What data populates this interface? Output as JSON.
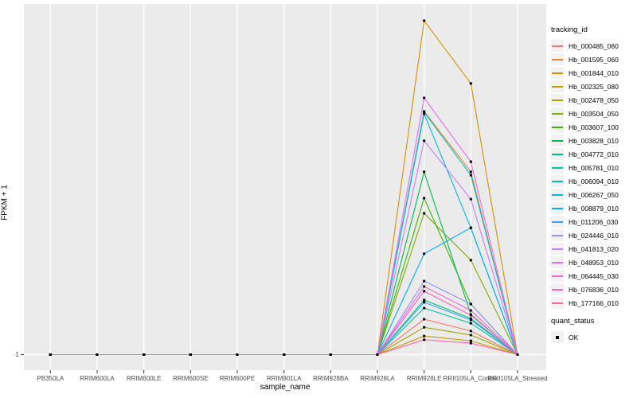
{
  "chart_data": {
    "type": "line",
    "title": "",
    "xlabel": "sample_name",
    "ylabel": "FPKM + 1",
    "y_ticks": [
      "1"
    ],
    "ylim_note": "only tick shown is 1 at baseline; values above are estimated FPKM + 1",
    "grid": "on",
    "panel_bg": "#EBEBEB",
    "grid_color": "#FFFFFF",
    "point_color": "#000000",
    "legend_position": "right",
    "legend_title": "tracking_id",
    "categories": [
      "PB350LA",
      "RRIM600LA",
      "RRIM600LE",
      "RRIM600SE",
      "RRIM600PE",
      "RRIM901LA",
      "RRIM928BA",
      "RRIM928LA",
      "RRIM928LE",
      "RRII105LA_Control",
      "RRII105LA_Stressed"
    ],
    "series": [
      {
        "name": "Hb_000485_060",
        "color": "#F8766D",
        "values": [
          1,
          1,
          1,
          1,
          1,
          1,
          1,
          1,
          11.5,
          8.0,
          1
        ]
      },
      {
        "name": "Hb_001595_060",
        "color": "#EA8331",
        "values": [
          1,
          1,
          1,
          1,
          1,
          1,
          1,
          1,
          73.1,
          55.2,
          1
        ]
      },
      {
        "name": "Hb_001844_010",
        "color": "#D89000",
        "values": [
          1,
          1,
          1,
          1,
          1,
          1,
          1,
          1,
          100.0,
          81.4,
          1
        ]
      },
      {
        "name": "Hb_002325_080",
        "color": "#C09B00",
        "values": [
          1,
          1,
          1,
          1,
          1,
          1,
          1,
          1,
          6.5,
          5.1,
          1
        ]
      },
      {
        "name": "Hb_002478_050",
        "color": "#A3A500",
        "values": [
          1,
          1,
          1,
          1,
          1,
          1,
          1,
          1,
          9.1,
          6.8,
          1
        ]
      },
      {
        "name": "Hb_003504_050",
        "color": "#7CAE00",
        "values": [
          1,
          1,
          1,
          1,
          1,
          1,
          1,
          1,
          42.9,
          29.0,
          1
        ]
      },
      {
        "name": "Hb_003607_100",
        "color": "#39B600",
        "values": [
          1,
          1,
          1,
          1,
          1,
          1,
          1,
          1,
          47.4,
          16.0,
          1
        ]
      },
      {
        "name": "Hb_003828_010",
        "color": "#00BB4E",
        "values": [
          1,
          1,
          1,
          1,
          1,
          1,
          1,
          1,
          55.2,
          12.9,
          1
        ]
      },
      {
        "name": "Hb_004772_010",
        "color": "#00BF7D",
        "values": [
          1,
          1,
          1,
          1,
          1,
          1,
          1,
          1,
          17.2,
          11.7,
          1
        ]
      },
      {
        "name": "Hb_005781_010",
        "color": "#00C1A3",
        "values": [
          1,
          1,
          1,
          1,
          1,
          1,
          1,
          1,
          14.8,
          10.3,
          1
        ]
      },
      {
        "name": "Hb_006094_010",
        "color": "#00BFC4",
        "values": [
          1,
          1,
          1,
          1,
          1,
          1,
          1,
          1,
          72.9,
          54.2,
          1
        ]
      },
      {
        "name": "Hb_006267_050",
        "color": "#00BAE0",
        "values": [
          1,
          1,
          1,
          1,
          1,
          1,
          1,
          1,
          72.4,
          38.6,
          1
        ]
      },
      {
        "name": "Hb_008879_010",
        "color": "#00B0F6",
        "values": [
          1,
          1,
          1,
          1,
          1,
          1,
          1,
          1,
          30.9,
          38.6,
          1
        ]
      },
      {
        "name": "Hb_011206_030",
        "color": "#35A2FF",
        "values": [
          1,
          1,
          1,
          1,
          1,
          1,
          1,
          1,
          16.5,
          11.3,
          1
        ]
      },
      {
        "name": "Hb_024446_010",
        "color": "#9590FF",
        "values": [
          1,
          1,
          1,
          1,
          1,
          1,
          1,
          1,
          22.8,
          16.0,
          1
        ]
      },
      {
        "name": "Hb_041813_020",
        "color": "#C77CFF",
        "values": [
          1,
          1,
          1,
          1,
          1,
          1,
          1,
          1,
          64.4,
          47.1,
          1
        ]
      },
      {
        "name": "Hb_048953_010",
        "color": "#E76BF3",
        "values": [
          1,
          1,
          1,
          1,
          1,
          1,
          1,
          1,
          77.1,
          58.2,
          1
        ]
      },
      {
        "name": "Hb_064445_030",
        "color": "#FA62DB",
        "values": [
          1,
          1,
          1,
          1,
          1,
          1,
          1,
          1,
          21.2,
          14.1,
          1
        ]
      },
      {
        "name": "Hb_076836_010",
        "color": "#FF61C3",
        "values": [
          1,
          1,
          1,
          1,
          1,
          1,
          1,
          1,
          19.8,
          12.7,
          1
        ]
      },
      {
        "name": "Hb_177166_010",
        "color": "#FF67A4",
        "values": [
          1,
          1,
          1,
          1,
          1,
          1,
          1,
          1,
          5.4,
          4.4,
          1
        ]
      }
    ],
    "quant_legend": {
      "title": "quant_status",
      "items": [
        {
          "label": "OK",
          "shape": "square",
          "color": "#000000"
        }
      ]
    }
  }
}
